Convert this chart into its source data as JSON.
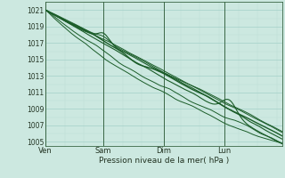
{
  "xlabel": "Pression niveau de la mer( hPa )",
  "ylim": [
    1004.5,
    1022
  ],
  "xlim": [
    0,
    90
  ],
  "yticks": [
    1005,
    1007,
    1009,
    1011,
    1013,
    1015,
    1017,
    1019,
    1021
  ],
  "day_labels": [
    "Ven",
    "Sam",
    "Dim",
    "Lun"
  ],
  "day_positions": [
    0,
    22,
    45,
    68
  ],
  "bg_color": "#cce8e0",
  "grid_major_color": "#aad4cc",
  "grid_minor_color": "#bbddd6",
  "line_color": "#1a5c28",
  "total_points": 500
}
